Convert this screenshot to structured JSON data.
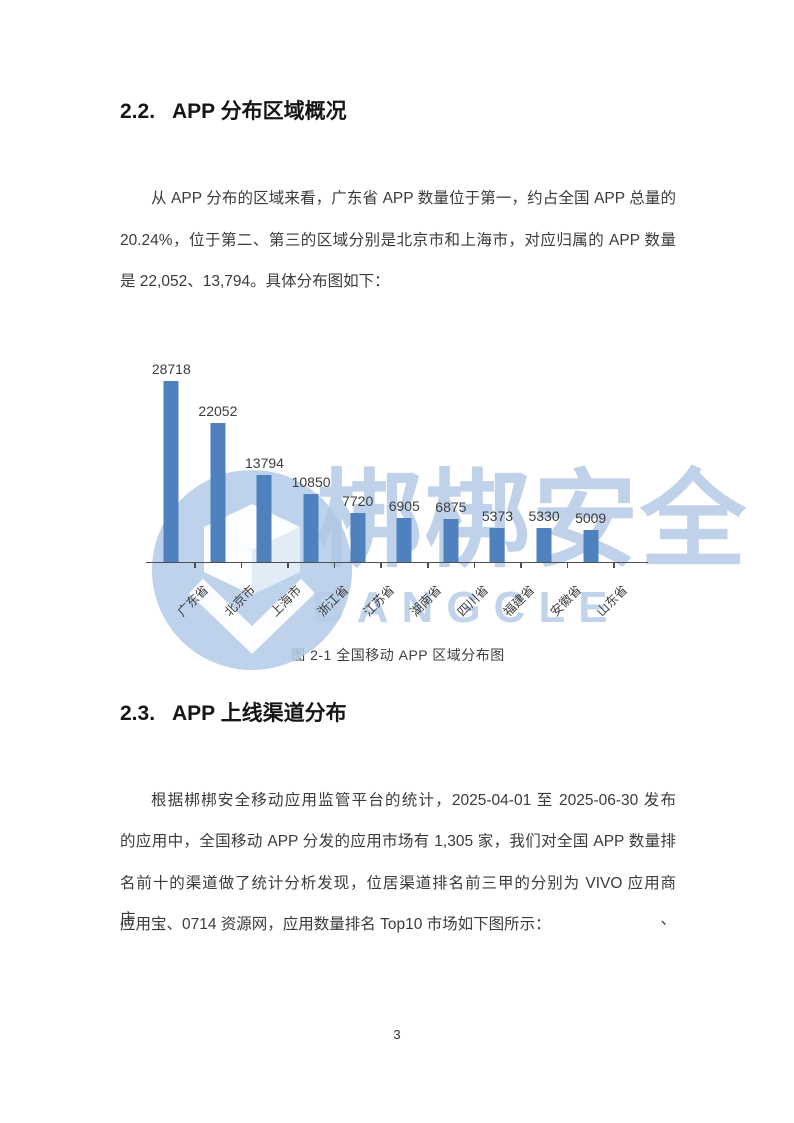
{
  "sections": [
    {
      "number": "2.2.",
      "title": "APP 分布区域概况",
      "paragraph_lines": [
        "从 APP 分布的区域来看，广东省 APP 数量位于第一，约占全国 APP 总量的",
        "20.24%，位于第二、第三的区域分别是北京市和上海市，对应归属的 APP 数量",
        "是 22,052、13,794。具体分布图如下："
      ]
    },
    {
      "number": "2.3.",
      "title": "APP 上线渠道分布",
      "paragraph_lines": [
        "根据梆梆安全移动应用监管平台的统计，2025-04-01 至 2025-06-30 发布",
        "的应用中，全国移动 APP 分发的应用市场有 1,305 家，我们对全国 APP 数量排",
        "名前十的渠道做了统计分析发现，位居渠道排名前三甲的分别为 VIVO 应用商店、",
        "应用宝、0714 资源网，应用数量排名 Top10 市场如下图所示："
      ]
    }
  ],
  "chart_data": {
    "type": "bar",
    "categories": [
      "广东省",
      "北京市",
      "上海市",
      "浙江省",
      "江苏省",
      "湖南省",
      "四川省",
      "福建省",
      "安徽省",
      "山东省"
    ],
    "values": [
      28718,
      22052,
      13794,
      10850,
      7720,
      6905,
      6875,
      5373,
      5330,
      5009
    ],
    "title": "",
    "xlabel": "",
    "ylabel": "",
    "ylim": [
      0,
      30000
    ],
    "grid": false,
    "legend": false,
    "data_labels": true,
    "bar_color": "#4e81bd",
    "axis_color": "#4f4f4f"
  },
  "figure": {
    "caption": "图 2-1 全国移动 APP 区域分布图"
  },
  "watermark": {
    "cn": "梆梆安全",
    "en": "BANGCLE",
    "color": "#b0c7e6"
  },
  "page_number": "3"
}
